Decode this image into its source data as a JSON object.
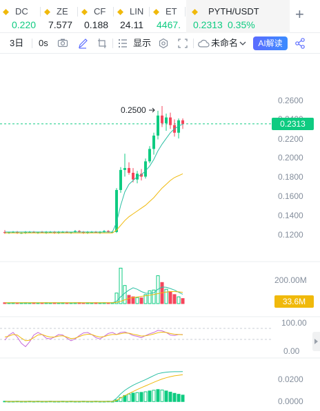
{
  "tabs": [
    {
      "symbol": "DC",
      "price": "0.220",
      "up": true
    },
    {
      "symbol": "ZE",
      "price": "7.577",
      "up": false
    },
    {
      "symbol": "CF",
      "price": "0.188",
      "up": false
    },
    {
      "symbol": "LIN",
      "price": "24.11",
      "up": false
    },
    {
      "symbol": "ET",
      "price": "4467.",
      "up": true
    },
    {
      "symbol": "PYTH/USDT",
      "price": "0.2313",
      "change": "0.35%",
      "up": true,
      "active": true
    }
  ],
  "add_tab_label": "+",
  "toolbar": {
    "interval": "3日",
    "interval_2": "0s",
    "display_label": "显示",
    "layout_name": "未命名",
    "ai_label": "AI解读",
    "icons": [
      "camera-icon",
      "pen-icon",
      "crop-icon",
      "indicator-list-icon",
      "settings-icon",
      "fullscreen-icon",
      "cloud-icon",
      "share-icon"
    ]
  },
  "colors": {
    "up": "#0ecb81",
    "down": "#f6465d",
    "ma_fast": "#2bbfa4",
    "ma_slow": "#f0b90b",
    "rsi_line": "#c76ad8",
    "accent": "#f0b90b"
  },
  "chart_data": [
    {
      "type": "candlestick",
      "pair": "PYTH/USDT",
      "interval": "3日",
      "current_price": "0.2313",
      "high_marker": "0.2500",
      "y_ticks": [
        "0.2600",
        "0.2400",
        "0.2200",
        "0.2000",
        "0.1800",
        "0.1600",
        "0.1400",
        "0.1200"
      ],
      "ylim": [
        0.105,
        0.268
      ],
      "candles": [
        [
          0.118,
          0.12,
          0.116,
          0.117
        ],
        [
          0.117,
          0.118,
          0.116,
          0.118
        ],
        [
          0.118,
          0.119,
          0.117,
          0.118
        ],
        [
          0.118,
          0.119,
          0.116,
          0.117
        ],
        [
          0.117,
          0.118,
          0.116,
          0.117
        ],
        [
          0.117,
          0.119,
          0.116,
          0.118
        ],
        [
          0.118,
          0.119,
          0.117,
          0.118
        ],
        [
          0.118,
          0.119,
          0.117,
          0.117
        ],
        [
          0.117,
          0.118,
          0.116,
          0.118
        ],
        [
          0.118,
          0.119,
          0.117,
          0.117
        ],
        [
          0.117,
          0.119,
          0.116,
          0.118
        ],
        [
          0.118,
          0.119,
          0.117,
          0.118
        ],
        [
          0.118,
          0.119,
          0.116,
          0.117
        ],
        [
          0.117,
          0.119,
          0.116,
          0.118
        ],
        [
          0.118,
          0.119,
          0.117,
          0.118
        ],
        [
          0.118,
          0.119,
          0.117,
          0.117
        ],
        [
          0.117,
          0.118,
          0.116,
          0.118
        ],
        [
          0.118,
          0.12,
          0.117,
          0.119
        ],
        [
          0.119,
          0.12,
          0.117,
          0.118
        ],
        [
          0.118,
          0.119,
          0.116,
          0.117
        ],
        [
          0.117,
          0.119,
          0.116,
          0.118
        ],
        [
          0.118,
          0.119,
          0.117,
          0.118
        ],
        [
          0.118,
          0.119,
          0.117,
          0.117
        ],
        [
          0.117,
          0.119,
          0.116,
          0.118
        ],
        [
          0.118,
          0.12,
          0.117,
          0.119
        ],
        [
          0.119,
          0.12,
          0.117,
          0.118
        ],
        [
          0.118,
          0.119,
          0.117,
          0.118
        ],
        [
          0.118,
          0.164,
          0.117,
          0.162
        ],
        [
          0.162,
          0.186,
          0.159,
          0.183
        ],
        [
          0.183,
          0.2,
          0.176,
          0.185
        ],
        [
          0.185,
          0.191,
          0.178,
          0.18
        ],
        [
          0.18,
          0.185,
          0.17,
          0.173
        ],
        [
          0.173,
          0.182,
          0.169,
          0.179
        ],
        [
          0.179,
          0.184,
          0.172,
          0.176
        ],
        [
          0.176,
          0.195,
          0.174,
          0.192
        ],
        [
          0.192,
          0.208,
          0.19,
          0.205
        ],
        [
          0.205,
          0.222,
          0.199,
          0.219
        ],
        [
          0.219,
          0.245,
          0.215,
          0.24
        ],
        [
          0.24,
          0.25,
          0.228,
          0.232
        ],
        [
          0.232,
          0.242,
          0.224,
          0.238
        ],
        [
          0.238,
          0.243,
          0.226,
          0.23
        ],
        [
          0.23,
          0.236,
          0.218,
          0.222
        ],
        [
          0.222,
          0.237,
          0.216,
          0.235
        ],
        [
          0.235,
          0.237,
          0.226,
          0.2313
        ]
      ],
      "ma_fast": [
        0.118,
        0.118,
        0.118,
        0.118,
        0.118,
        0.118,
        0.118,
        0.118,
        0.118,
        0.118,
        0.118,
        0.118,
        0.118,
        0.118,
        0.118,
        0.118,
        0.118,
        0.118,
        0.118,
        0.118,
        0.118,
        0.118,
        0.118,
        0.118,
        0.118,
        0.118,
        0.118,
        0.128,
        0.146,
        0.16,
        0.168,
        0.172,
        0.176,
        0.178,
        0.182,
        0.187,
        0.194,
        0.203,
        0.21,
        0.216,
        0.222,
        0.226,
        0.229,
        0.231
      ],
      "ma_slow": [
        0.117,
        0.117,
        0.117,
        0.117,
        0.117,
        0.117,
        0.117,
        0.117,
        0.117,
        0.117,
        0.117,
        0.117,
        0.117,
        0.117,
        0.117,
        0.117,
        0.117,
        0.117,
        0.117,
        0.117,
        0.117,
        0.117,
        0.117,
        0.117,
        0.117,
        0.117,
        0.117,
        0.12,
        0.125,
        0.13,
        0.134,
        0.137,
        0.14,
        0.143,
        0.146,
        0.15,
        0.154,
        0.159,
        0.164,
        0.168,
        0.172,
        0.175,
        0.177,
        0.179
      ]
    },
    {
      "type": "bar",
      "name": "volume",
      "y_tick": "200.00M",
      "current_value": "33.6M",
      "ylim": [
        0,
        260
      ],
      "values": [
        6,
        5,
        6,
        5,
        5,
        6,
        5,
        6,
        5,
        5,
        6,
        5,
        6,
        5,
        6,
        5,
        5,
        6,
        7,
        5,
        6,
        5,
        6,
        5,
        6,
        5,
        6,
        70,
        235,
        120,
        55,
        45,
        40,
        38,
        60,
        85,
        90,
        185,
        140,
        95,
        80,
        60,
        45,
        33.6
      ],
      "ma": [
        6,
        6,
        6,
        6,
        6,
        6,
        6,
        6,
        6,
        6,
        6,
        6,
        6,
        6,
        6,
        6,
        6,
        6,
        6,
        6,
        6,
        6,
        6,
        6,
        6,
        6,
        6,
        15,
        45,
        70,
        90,
        105,
        95,
        80,
        70,
        68,
        72,
        95,
        110,
        108,
        100,
        90,
        75,
        62
      ],
      "ma2": [
        6,
        6,
        6,
        6,
        6,
        6,
        6,
        6,
        6,
        6,
        6,
        6,
        6,
        6,
        6,
        6,
        6,
        6,
        6,
        6,
        6,
        6,
        6,
        6,
        6,
        6,
        6,
        8,
        15,
        25,
        35,
        40,
        44,
        48,
        52,
        56,
        60,
        66,
        72,
        76,
        80,
        80,
        78,
        75
      ]
    },
    {
      "type": "line",
      "name": "oscillator",
      "y_ticks": [
        "100.00",
        "0.00"
      ],
      "ylim": [
        -5,
        115
      ],
      "series": [
        {
          "values": [
            40,
            60,
            70,
            52,
            28,
            15,
            34,
            60,
            70,
            62,
            48,
            45,
            52,
            62,
            60,
            48,
            38,
            45,
            58,
            68,
            70,
            62,
            50,
            45,
            55,
            66,
            70,
            62,
            70,
            72,
            66,
            58,
            55,
            50,
            58,
            65,
            70,
            78,
            76,
            70,
            60,
            58,
            62,
            62
          ]
        },
        {
          "values": [
            52,
            56,
            62,
            60,
            48,
            38,
            40,
            50,
            60,
            62,
            56,
            52,
            52,
            56,
            57,
            52,
            46,
            48,
            54,
            60,
            63,
            62,
            56,
            52,
            54,
            59,
            62,
            62,
            65,
            68,
            67,
            63,
            60,
            56,
            57,
            60,
            64,
            69,
            71,
            70,
            66,
            63,
            62,
            61
          ]
        }
      ]
    },
    {
      "type": "bar",
      "name": "macd",
      "y_ticks": [
        "0.0200",
        "0.0000"
      ],
      "ylim": [
        -0.001,
        0.027
      ],
      "values": [
        0.0003,
        0.0002,
        0.0002,
        0.0003,
        0.0002,
        0.0002,
        0.0003,
        0.0002,
        0.0003,
        0.0002,
        0.0002,
        0.0003,
        0.0002,
        0.0002,
        0.0003,
        0.0002,
        0.0003,
        0.0002,
        0.0002,
        0.0003,
        0.0002,
        0.0002,
        0.0003,
        0.0002,
        0.0002,
        0.0003,
        0.0002,
        0.0014,
        0.0035,
        0.0052,
        0.0064,
        0.0072,
        0.0076,
        0.0078,
        0.0083,
        0.009,
        0.0096,
        0.0102,
        0.0098,
        0.009,
        0.008,
        0.007,
        0.0062,
        0.0055
      ],
      "line_1": [
        0.0002,
        0.0002,
        0.0002,
        0.0002,
        0.0002,
        0.0002,
        0.0002,
        0.0002,
        0.0002,
        0.0002,
        0.0002,
        0.0002,
        0.0002,
        0.0002,
        0.0002,
        0.0002,
        0.0002,
        0.0002,
        0.0002,
        0.0002,
        0.0002,
        0.0002,
        0.0002,
        0.0002,
        0.0002,
        0.0002,
        0.0002,
        0.0028,
        0.0065,
        0.0095,
        0.0118,
        0.0138,
        0.0155,
        0.017,
        0.0186,
        0.0203,
        0.022,
        0.0236,
        0.0244,
        0.0249,
        0.0252,
        0.0253,
        0.0253,
        0.0254
      ],
      "line_2": [
        0.0001,
        0.0001,
        0.0001,
        0.0001,
        0.0001,
        0.0001,
        0.0001,
        0.0001,
        0.0001,
        0.0001,
        0.0001,
        0.0001,
        0.0001,
        0.0001,
        0.0001,
        0.0001,
        0.0001,
        0.0001,
        0.0001,
        0.0001,
        0.0001,
        0.0001,
        0.0001,
        0.0001,
        0.0001,
        0.0001,
        0.0001,
        0.001,
        0.003,
        0.005,
        0.0068,
        0.0085,
        0.0102,
        0.0118,
        0.0133,
        0.0148,
        0.0163,
        0.0178,
        0.0191,
        0.0202,
        0.0211,
        0.0218,
        0.0223,
        0.0228
      ]
    }
  ]
}
